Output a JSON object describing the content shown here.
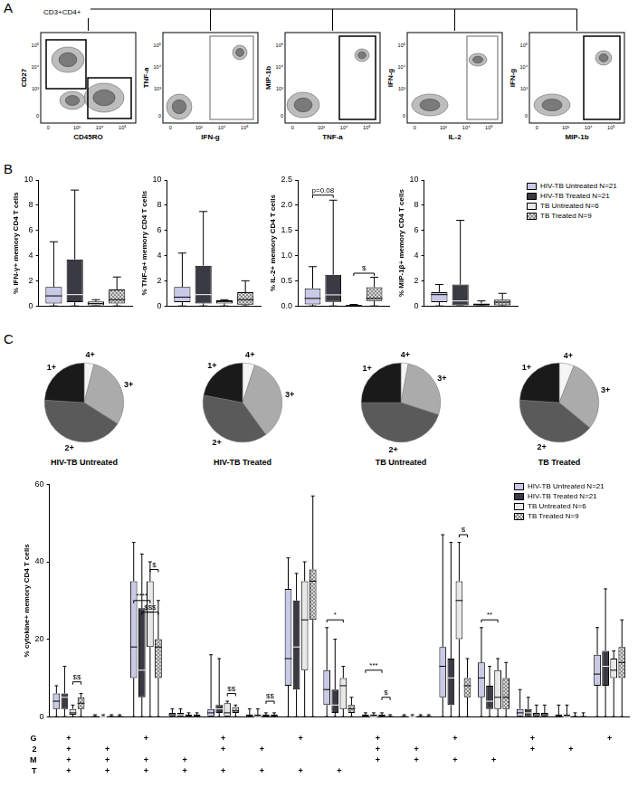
{
  "panel_labels": [
    "A",
    "B",
    "C"
  ],
  "panel_a": {
    "gate_label": "CD3+CD4+",
    "tick_labels": [
      "0",
      "10³",
      "10⁴",
      "10⁵"
    ],
    "plots": [
      {
        "x_label": "CD45RO",
        "y_label": "CD27"
      },
      {
        "x_label": "IFN-g",
        "y_label": "TNF-a"
      },
      {
        "x_label": "TNF-a",
        "y_label": "MIP-1b"
      },
      {
        "x_label": "IL-2",
        "y_label": "IFN-g"
      },
      {
        "x_label": "MIP-1b",
        "y_label": "IFN-g"
      }
    ]
  },
  "chart_data": [
    {
      "type": "box",
      "y_label": "% IFN-γ+ memory CD4 T cells",
      "categories": [
        null
      ],
      "ylim": [
        0,
        10
      ],
      "yticks": [
        0,
        2,
        4,
        6,
        8,
        10
      ],
      "grid": false,
      "series": [
        {
          "name": "HIV-TB Untreated N=21",
          "color": "#c9c9e8",
          "min": [
            0
          ],
          "q1": [
            0.2
          ],
          "median": [
            0.8
          ],
          "q3": [
            1.5
          ],
          "max": [
            5.1
          ]
        },
        {
          "name": "HIV-TB Treated N=21",
          "color": "#3a3a44",
          "min": [
            0
          ],
          "q1": [
            0.3
          ],
          "median": [
            0.9
          ],
          "q3": [
            3.7
          ],
          "max": [
            9.2
          ]
        },
        {
          "name": "TB Untreated N=6",
          "color": "#e8e8e8",
          "min": [
            0
          ],
          "q1": [
            0.05
          ],
          "median": [
            0.2
          ],
          "q3": [
            0.35
          ],
          "max": [
            0.5
          ]
        },
        {
          "name": "TB Treated N=9",
          "color": "#d8d8d8",
          "marker": "checker",
          "min": [
            0
          ],
          "q1": [
            0.2
          ],
          "median": [
            0.5
          ],
          "q3": [
            1.3
          ],
          "max": [
            2.3
          ]
        }
      ]
    },
    {
      "type": "box",
      "y_label": "% TNF-α+ memory CD4 T cells",
      "categories": [
        null
      ],
      "ylim": [
        0,
        10
      ],
      "yticks": [
        0,
        2,
        4,
        6,
        8,
        10
      ],
      "grid": false,
      "series": [
        {
          "name": "HIV-TB Untreated N=21",
          "color": "#c9c9e8",
          "min": [
            0
          ],
          "q1": [
            0.3
          ],
          "median": [
            0.7
          ],
          "q3": [
            1.5
          ],
          "max": [
            4.2
          ]
        },
        {
          "name": "HIV-TB Treated N=21",
          "color": "#3a3a44",
          "min": [
            0
          ],
          "q1": [
            0.2
          ],
          "median": [
            0.9
          ],
          "q3": [
            3.2
          ],
          "max": [
            7.5
          ]
        },
        {
          "name": "TB Untreated N=6",
          "color": "#e8e8e8",
          "min": [
            0
          ],
          "q1": [
            0.2
          ],
          "median": [
            0.35
          ],
          "q3": [
            0.45
          ],
          "max": [
            0.5
          ]
        },
        {
          "name": "TB Treated N=9",
          "color": "#d8d8d8",
          "marker": "checker",
          "min": [
            0
          ],
          "q1": [
            0.1
          ],
          "median": [
            0.5
          ],
          "q3": [
            1.1
          ],
          "max": [
            2.0
          ]
        }
      ]
    },
    {
      "type": "box",
      "y_label": "% IL-2+ memory CD4 T cells",
      "categories": [
        null
      ],
      "ylim": [
        0,
        2.5
      ],
      "yticks": [
        {
          "value": 0,
          "label": "0.0"
        },
        {
          "value": 0.5,
          "label": "0.5"
        },
        {
          "value": 1,
          "label": "1.0"
        },
        {
          "value": 1.5,
          "label": "1.5"
        },
        {
          "value": 2,
          "label": "2.0"
        },
        {
          "value": 2.5,
          "label": "2.5"
        }
      ],
      "grid": false,
      "annotations": [
        {
          "text": "p=0.08",
          "category": 0,
          "series": [
            0,
            1
          ],
          "y": 2.2
        },
        {
          "text": "$",
          "category": 0,
          "series": [
            2,
            3
          ],
          "y": 0.65
        }
      ],
      "series": [
        {
          "name": "HIV-TB Untreated N=21",
          "color": "#c9c9e8",
          "min": [
            0
          ],
          "q1": [
            0.03
          ],
          "median": [
            0.15
          ],
          "q3": [
            0.35
          ],
          "max": [
            0.78
          ]
        },
        {
          "name": "HIV-TB Treated N=21",
          "color": "#3a3a44",
          "min": [
            0
          ],
          "q1": [
            0.08
          ],
          "median": [
            0.22
          ],
          "q3": [
            0.62
          ],
          "max": [
            2.1
          ]
        },
        {
          "name": "TB Untreated N=6",
          "color": "#e8e8e8",
          "min": [
            0
          ],
          "q1": [
            0
          ],
          "median": [
            0.01
          ],
          "q3": [
            0.02
          ],
          "max": [
            0.03
          ]
        },
        {
          "name": "TB Treated N=9",
          "color": "#d8d8d8",
          "marker": "checker",
          "min": [
            0
          ],
          "q1": [
            0.1
          ],
          "median": [
            0.15
          ],
          "q3": [
            0.37
          ],
          "max": [
            0.57
          ]
        }
      ]
    },
    {
      "type": "box",
      "y_label": "% MIP-1β+ memory CD4 T cells",
      "categories": [
        null
      ],
      "ylim": [
        0,
        10
      ],
      "yticks": [
        0,
        2,
        4,
        6,
        8,
        10
      ],
      "grid": false,
      "legend": "right",
      "series": [
        {
          "name": "HIV-TB Untreated N=21",
          "color": "#c9c9e8",
          "min": [
            0
          ],
          "q1": [
            0.3
          ],
          "median": [
            0.9
          ],
          "q3": [
            1.1
          ],
          "max": [
            1.7
          ]
        },
        {
          "name": "HIV-TB Treated N=21",
          "color": "#3a3a44",
          "min": [
            0
          ],
          "q1": [
            0.05
          ],
          "median": [
            0.4
          ],
          "q3": [
            1.7
          ],
          "max": [
            6.8
          ]
        },
        {
          "name": "TB Untreated N=6",
          "color": "#e8e8e8",
          "min": [
            0
          ],
          "q1": [
            0.05
          ],
          "median": [
            0.1
          ],
          "q3": [
            0.2
          ],
          "max": [
            0.4
          ]
        },
        {
          "name": "TB Treated N=9",
          "color": "#d8d8d8",
          "marker": "checker",
          "min": [
            0
          ],
          "q1": [
            0.05
          ],
          "median": [
            0.3
          ],
          "q3": [
            0.5
          ],
          "max": [
            1.0
          ]
        }
      ]
    },
    {
      "type": "pie",
      "title": "HIV-TB Untreated",
      "categories": [
        "4+",
        "3+",
        "2+",
        "1+"
      ],
      "values": [
        4,
        30,
        42,
        24
      ],
      "colors": [
        "#f5f5f5",
        "#ababab",
        "#5a5a5a",
        "#1a1a1a"
      ]
    },
    {
      "type": "pie",
      "title": "HIV-TB Treated",
      "categories": [
        "4+",
        "3+",
        "2+",
        "1+"
      ],
      "values": [
        5,
        35,
        38,
        22
      ],
      "colors": [
        "#f5f5f5",
        "#ababab",
        "#5a5a5a",
        "#1a1a1a"
      ]
    },
    {
      "type": "pie",
      "title": "TB Untreated",
      "categories": [
        "4+",
        "3+",
        "2+",
        "1+"
      ],
      "values": [
        3,
        27,
        45,
        25
      ],
      "colors": [
        "#f5f5f5",
        "#ababab",
        "#5a5a5a",
        "#1a1a1a"
      ]
    },
    {
      "type": "pie",
      "title": "TB Treated",
      "categories": [
        "4+",
        "3+",
        "2+",
        "1+"
      ],
      "values": [
        6,
        30,
        40,
        24
      ],
      "colors": [
        "#f5f5f5",
        "#ababab",
        "#5a5a5a",
        "#1a1a1a"
      ]
    },
    {
      "type": "box",
      "y_label": "% cytokine+ memory CD4 T cells",
      "categories": [
        null,
        null,
        null,
        null,
        null,
        null,
        null,
        null,
        null,
        null,
        null,
        null,
        null,
        null,
        null
      ],
      "ylim": [
        0,
        60
      ],
      "yticks": [
        0,
        20,
        40,
        60
      ],
      "grid": false,
      "legend": "top-right",
      "combinations": [
        {
          "label": "G",
          "marks": [
            "+",
            null,
            "+",
            null,
            "+",
            null,
            "+",
            null,
            "+",
            null,
            "+",
            null,
            "+",
            null,
            "+"
          ]
        },
        {
          "label": "2",
          "marks": [
            "+",
            "+",
            null,
            null,
            "+",
            "+",
            null,
            null,
            "+",
            "+",
            null,
            null,
            "+",
            "+",
            null
          ]
        },
        {
          "label": "M",
          "marks": [
            "+",
            "+",
            "+",
            "+",
            null,
            null,
            null,
            null,
            "+",
            "+",
            "+",
            "+",
            null,
            null,
            null
          ]
        },
        {
          "label": "T",
          "marks": [
            "+",
            "+",
            "+",
            "+",
            "+",
            "+",
            "+",
            "+",
            null,
            null,
            null,
            null,
            null,
            null,
            null
          ]
        }
      ],
      "annotations": [
        {
          "text": "$$",
          "category": 0,
          "series": [
            2,
            3
          ],
          "y": 9
        },
        {
          "text": "$",
          "category": 2,
          "series": [
            2,
            3
          ],
          "y": 38
        },
        {
          "text": "****",
          "category": 2,
          "series": [
            0,
            2
          ],
          "y": 30
        },
        {
          "text": "$$$",
          "category": 2,
          "series": [
            1,
            3
          ],
          "y": 27
        },
        {
          "text": "$$",
          "category": 4,
          "series": [
            2,
            3
          ],
          "y": 6
        },
        {
          "text": "$$",
          "category": 5,
          "series": [
            2,
            3
          ],
          "y": 4
        },
        {
          "text": "*",
          "category": 7,
          "series": [
            0,
            2
          ],
          "y": 25
        },
        {
          "text": "***",
          "category": 8,
          "series": [
            0,
            2
          ],
          "y": 12
        },
        {
          "text": "$",
          "category": 8,
          "series": [
            2,
            3
          ],
          "y": 5
        },
        {
          "text": "$",
          "category": 10,
          "series": [
            2,
            3
          ],
          "y": 47
        },
        {
          "text": "**",
          "category": 11,
          "series": [
            0,
            2
          ],
          "y": 25
        }
      ],
      "series": [
        {
          "name": "HIV-TB Untreated N=21",
          "color": "#c9c9e8",
          "min": [
            0,
            0,
            0,
            0,
            0,
            0,
            0,
            0,
            0,
            0,
            0,
            0,
            0,
            0,
            0
          ],
          "q1": [
            2,
            0,
            10,
            0,
            0,
            0,
            8,
            3,
            0,
            0,
            5,
            5,
            0,
            0,
            8
          ],
          "median": [
            4,
            0,
            18,
            0.5,
            1,
            0,
            15,
            7,
            0,
            0,
            13,
            10,
            1,
            0,
            11
          ],
          "q3": [
            6,
            0,
            35,
            1,
            2,
            0.5,
            33,
            12,
            0.5,
            0,
            18,
            14,
            2,
            0.5,
            16
          ],
          "max": [
            8,
            0.5,
            45,
            2,
            16,
            2,
            41,
            23,
            1,
            0.5,
            47,
            23,
            7,
            3,
            23
          ]
        },
        {
          "name": "HIV-TB Treated N=21",
          "color": "#3a3a44",
          "min": [
            0,
            0,
            0,
            0,
            0,
            0,
            0,
            0,
            0,
            0,
            0,
            0,
            0,
            0,
            0
          ],
          "q1": [
            2,
            0,
            5,
            0,
            1,
            0,
            7,
            1,
            0,
            0,
            3,
            2,
            0,
            0,
            8
          ],
          "median": [
            5,
            0,
            12,
            0.5,
            2,
            0,
            18,
            3,
            0,
            0,
            10,
            4,
            1,
            0,
            13
          ],
          "q3": [
            6,
            0,
            28,
            1,
            3,
            0.5,
            30,
            7,
            0.5,
            0,
            15,
            8,
            2,
            0.5,
            17
          ],
          "max": [
            13,
            0.5,
            42,
            2,
            15,
            2,
            37,
            20,
            1,
            0.5,
            45,
            13,
            5,
            3,
            33
          ]
        },
        {
          "name": "TB Untreated N=6",
          "color": "#e8e8e8",
          "min": [
            0,
            0,
            0,
            0,
            0,
            0,
            0,
            0,
            0,
            0,
            0,
            0,
            0,
            0,
            0
          ],
          "q1": [
            0.5,
            0,
            18,
            0,
            0,
            0,
            12,
            2,
            0,
            0,
            20,
            2,
            0,
            0,
            10
          ],
          "median": [
            1,
            0,
            27,
            0,
            1,
            0,
            25,
            8,
            0,
            0,
            30,
            5,
            0.5,
            0,
            12
          ],
          "q3": [
            2,
            0,
            35,
            0.5,
            3.5,
            0.5,
            35,
            10,
            0.5,
            0,
            35,
            12,
            1,
            0,
            15
          ],
          "max": [
            3,
            0.5,
            40,
            1,
            4,
            1,
            40,
            13,
            1,
            0.5,
            45,
            15,
            3,
            1,
            17
          ]
        },
        {
          "name": "TB Treated N=9",
          "color": "#d8d8d8",
          "marker": "checker",
          "min": [
            0,
            0,
            0,
            0,
            0,
            0,
            0,
            0,
            0,
            0,
            0,
            0,
            0,
            0,
            0
          ],
          "q1": [
            2,
            0,
            10,
            0,
            1,
            0,
            25,
            1,
            0,
            0,
            5,
            2,
            0,
            0,
            10
          ],
          "median": [
            3.5,
            0,
            18,
            0,
            1.5,
            0,
            35,
            2,
            0,
            0,
            8,
            5,
            0.5,
            0,
            14
          ],
          "q3": [
            5,
            0,
            20,
            0.5,
            2.5,
            0.5,
            38,
            3,
            0,
            0,
            10,
            10,
            1,
            0,
            18
          ],
          "max": [
            6,
            0.5,
            30,
            1,
            3,
            1,
            57,
            5,
            0.5,
            0.5,
            15,
            14,
            3,
            1,
            25
          ]
        }
      ]
    }
  ]
}
